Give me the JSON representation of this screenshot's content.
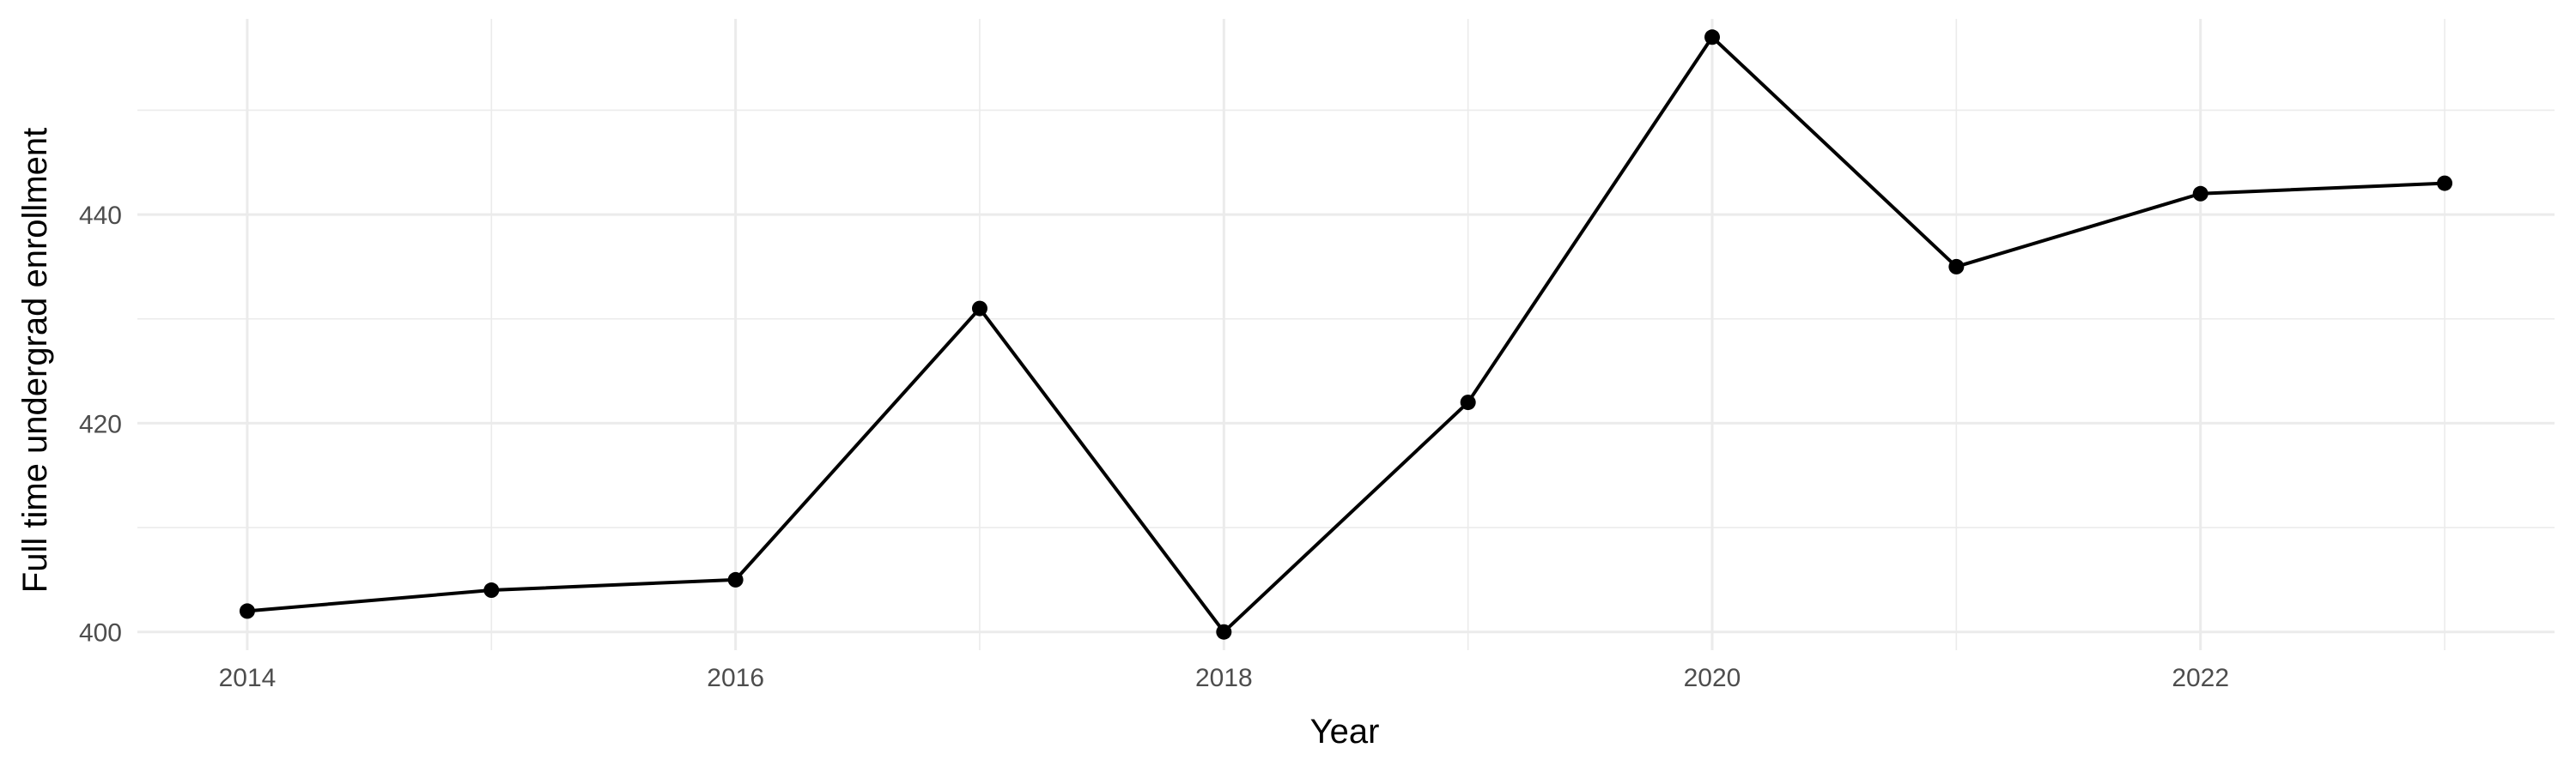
{
  "chart_data": {
    "type": "line",
    "title": "",
    "xlabel": "Year",
    "ylabel": "Full time undergrad enrollment",
    "x": [
      2014,
      2015,
      2016,
      2017,
      2018,
      2019,
      2020,
      2021,
      2022,
      2023
    ],
    "series": [
      {
        "values": [
          402,
          404,
          405,
          431,
          400,
          422,
          457,
          435,
          442,
          443
        ]
      }
    ],
    "xlim": [
      2013.55,
      2023.45
    ],
    "ylim": [
      398.25,
      458.75
    ],
    "x_ticks": [
      "2014",
      "2016",
      "2018",
      "2020",
      "2022"
    ],
    "y_ticks": [
      "400",
      "420",
      "440"
    ],
    "grid": true,
    "legend": "none",
    "colors": {
      "line": "#000000",
      "point": "#000000",
      "grid": "#ebebeb",
      "tick_text": "#4d4d4d"
    }
  }
}
